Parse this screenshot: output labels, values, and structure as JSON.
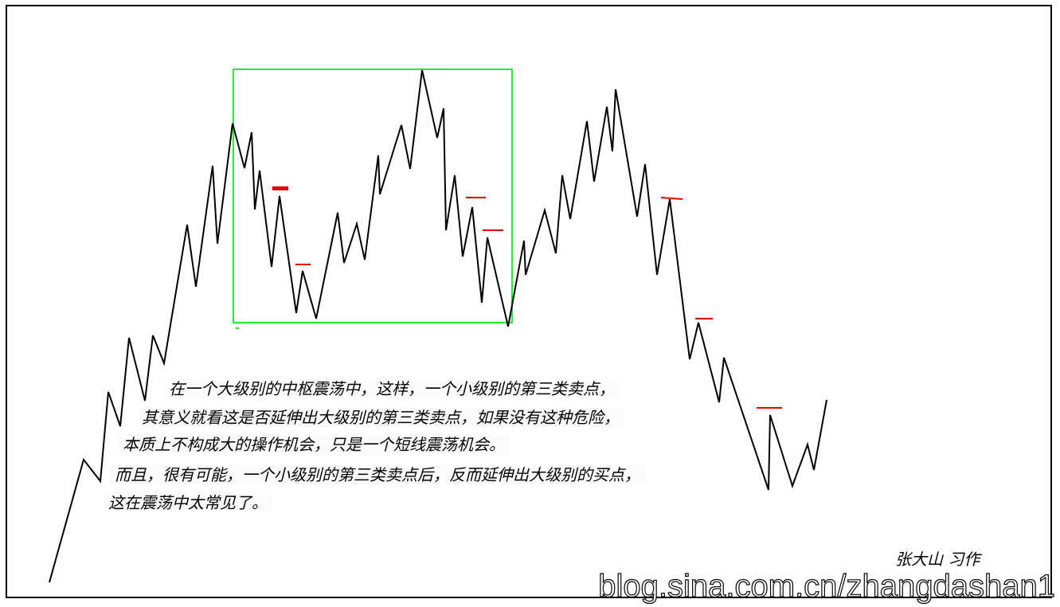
{
  "annotation": {
    "lines": [
      "在一个大级别的中枢震荡中，这样，一个小级别的第三类卖点，",
      "其意义就看这是否延伸出大级别的第三类卖点，如果没有这种危险，",
      "本质上不构成大的操作机会，只是一个短线震荡机会。",
      "而且，很有可能，一个小级别的第三类卖点后，反而延伸出大级别的买点，",
      "这在震荡中太常见了。"
    ]
  },
  "signature": "张大山 习作",
  "watermark": "blog.sina.com.cn/zhangdashan1",
  "colors": {
    "price_line": "#000000",
    "central_box": "#22ee33",
    "sell_point_marker": "#ee0000",
    "frame": "#000000"
  }
}
